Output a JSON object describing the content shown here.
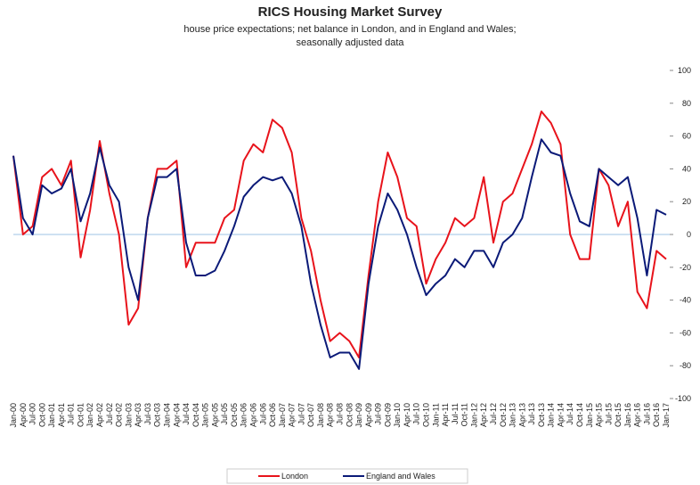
{
  "chart_data": {
    "type": "line",
    "title": "RICS Housing Market Survey",
    "subtitle": [
      "house price expectations; net balance in London, and in England and Wales;",
      "seasonally adjusted data"
    ],
    "categories": [
      "Jan-00",
      "Apr-00",
      "Jul-00",
      "Oct-00",
      "Jan-01",
      "Apr-01",
      "Jul-01",
      "Oct-01",
      "Jan-02",
      "Apr-02",
      "Jul-02",
      "Oct-02",
      "Jan-03",
      "Apr-03",
      "Jul-03",
      "Oct-03",
      "Jan-04",
      "Apr-04",
      "Jul-04",
      "Oct-04",
      "Jan-05",
      "Apr-05",
      "Jul-05",
      "Oct-05",
      "Jan-06",
      "Apr-06",
      "Jul-06",
      "Oct-06",
      "Jan-07",
      "Apr-07",
      "Jul-07",
      "Oct-07",
      "Jan-08",
      "Apr-08",
      "Jul-08",
      "Oct-08",
      "Jan-09",
      "Apr-09",
      "Jul-09",
      "Oct-09",
      "Jan-10",
      "Apr-10",
      "Jul-10",
      "Oct-10",
      "Jan-11",
      "Apr-11",
      "Jul-11",
      "Oct-11",
      "Jan-12",
      "Apr-12",
      "Jul-12",
      "Oct-12",
      "Jan-13",
      "Apr-13",
      "Jul-13",
      "Oct-13",
      "Jan-14",
      "Apr-14",
      "Jul-14",
      "Oct-14",
      "Jan-15",
      "Apr-15",
      "Jul-15",
      "Oct-15",
      "Jan-16",
      "Apr-16",
      "Jul-16",
      "Oct-16",
      "Jan-17"
    ],
    "series": [
      {
        "name": "London",
        "color": "#e8131b",
        "values": [
          48,
          0,
          5,
          35,
          40,
          30,
          45,
          -14,
          15,
          57,
          25,
          0,
          -55,
          -45,
          10,
          40,
          40,
          45,
          -20,
          -5,
          -5,
          -5,
          10,
          15,
          45,
          55,
          50,
          70,
          65,
          50,
          10,
          -10,
          -40,
          -65,
          -60,
          -65,
          -75,
          -25,
          20,
          50,
          35,
          10,
          5,
          -30,
          -15,
          -5,
          10,
          5,
          10,
          35,
          -5,
          20,
          25,
          40,
          55,
          75,
          68,
          55,
          0,
          -15,
          -15,
          40,
          30,
          5,
          20,
          -35,
          -45,
          -10,
          -15
        ]
      },
      {
        "name": "England and Wales",
        "color": "#0b1a78",
        "values": [
          48,
          10,
          0,
          30,
          25,
          28,
          40,
          8,
          25,
          53,
          30,
          20,
          -20,
          -40,
          10,
          35,
          35,
          40,
          -5,
          -25,
          -25,
          -22,
          -10,
          5,
          23,
          30,
          35,
          33,
          35,
          25,
          5,
          -30,
          -55,
          -75,
          -72,
          -72,
          -82,
          -30,
          5,
          25,
          15,
          0,
          -20,
          -37,
          -30,
          -25,
          -15,
          -20,
          -10,
          -10,
          -20,
          -5,
          0,
          10,
          35,
          58,
          50,
          48,
          25,
          8,
          5,
          40,
          35,
          30,
          35,
          10,
          -25,
          15,
          12
        ]
      }
    ],
    "ylim": [
      -100,
      100
    ],
    "yticks": [
      -100,
      -80,
      -60,
      -40,
      -20,
      0,
      20,
      40,
      60,
      80,
      100
    ],
    "zero_line_color": "#9cc3e6"
  }
}
